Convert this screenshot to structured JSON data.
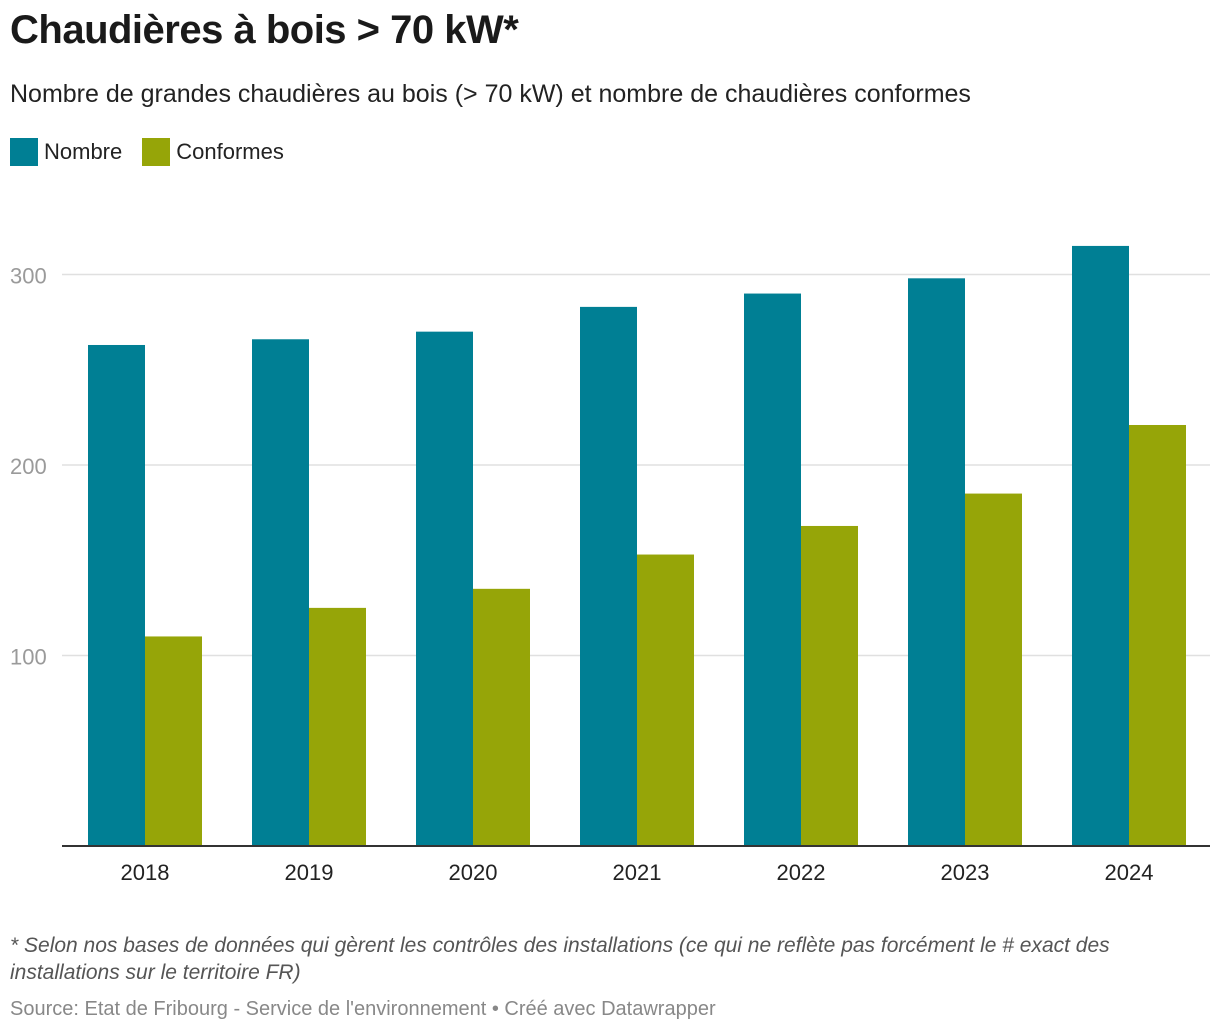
{
  "title": "Chaudières à bois > 70 kW*",
  "subtitle": "Nombre de grandes chaudières au bois (> 70 kW) et nombre de chaudières conformes",
  "legend": [
    {
      "label": "Nombre",
      "color": "#007f94"
    },
    {
      "label": "Conformes",
      "color": "#96a508"
    }
  ],
  "footnote": "* Selon nos bases de données qui gèrent les contrôles des installations (ce qui ne reflète pas forcément le # exact des installations sur le territoire FR)",
  "source": "Source: Etat de Fribourg - Service de l'environnement • Créé avec Datawrapper",
  "chart_data": {
    "type": "bar",
    "title": "Chaudières à bois > 70 kW*",
    "xlabel": "",
    "ylabel": "",
    "categories": [
      "2018",
      "2019",
      "2020",
      "2021",
      "2022",
      "2023",
      "2024"
    ],
    "series": [
      {
        "name": "Nombre",
        "color": "#007f94",
        "values": [
          263,
          266,
          270,
          283,
          290,
          298,
          315
        ]
      },
      {
        "name": "Conformes",
        "color": "#96a508",
        "values": [
          110,
          125,
          135,
          153,
          168,
          185,
          221
        ]
      }
    ],
    "ylim": [
      0,
      330
    ],
    "yticks": [
      "100",
      "200",
      "300"
    ],
    "grid": true,
    "legend_position": "top-left"
  }
}
